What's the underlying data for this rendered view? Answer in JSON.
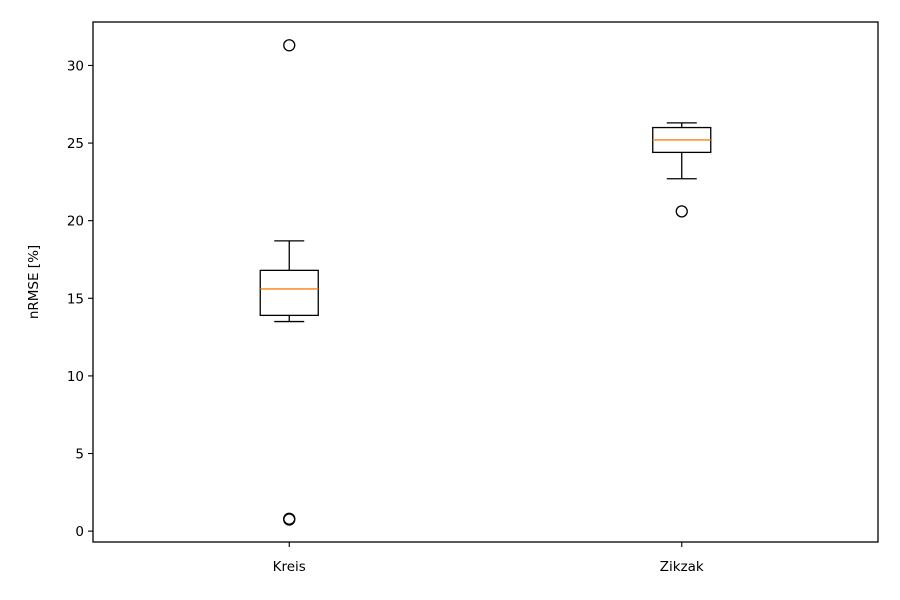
{
  "chart_data": {
    "type": "boxplot",
    "ylabel": "nRMSE [%]",
    "xlabel": "",
    "title": "",
    "ylim": [
      -0.7,
      32.8
    ],
    "yticks": [
      0,
      5,
      10,
      15,
      20,
      25,
      30
    ],
    "grid": false,
    "legend": "none",
    "categories": [
      "Kreis",
      "Zikzak"
    ],
    "boxes": [
      {
        "label": "Kreis",
        "whisker_low": 13.5,
        "q1": 13.9,
        "median": 15.6,
        "q3": 16.8,
        "whisker_high": 18.7,
        "outliers": [
          31.3,
          0.8,
          0.75
        ]
      },
      {
        "label": "Zikzak",
        "whisker_low": 22.7,
        "q1": 24.4,
        "median": 25.2,
        "q3": 26.0,
        "whisker_high": 26.3,
        "outliers": [
          20.6
        ]
      }
    ],
    "colors": {
      "box": "#000000",
      "median": "#ff7f0e",
      "outlier": "#000000"
    }
  }
}
